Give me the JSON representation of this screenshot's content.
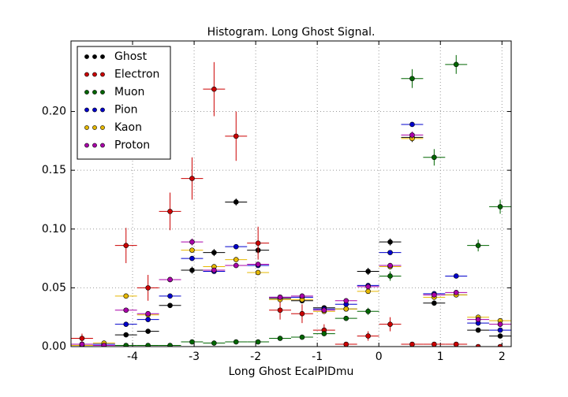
{
  "chart_data": {
    "type": "histogram_errorbar",
    "title": "Histogram. Long Ghost Signal.",
    "xlabel": "Long Ghost EcalPIDmu",
    "bins": [
      -5,
      -4.6425,
      -4.285,
      -3.9275,
      -3.57,
      -3.2125,
      -2.855,
      -2.4975,
      -2.14,
      -1.7825,
      -1.425,
      -1.0675,
      -0.71,
      -0.3525,
      0.005,
      0.3625,
      0.72,
      1.0775,
      1.435,
      1.7925,
      2.15
    ],
    "xlim": [
      -5,
      2.15
    ],
    "ylim": [
      0,
      0.26
    ],
    "xticks": [
      -4,
      -3,
      -2,
      -1,
      0,
      1,
      2
    ],
    "yticks": [
      {
        "value": 0,
        "label": "0.00"
      },
      {
        "value": 0.05,
        "label": "0.05"
      },
      {
        "value": 0.1,
        "label": "0.10"
      },
      {
        "value": 0.15,
        "label": "0.15"
      },
      {
        "value": 0.2,
        "label": "0.20"
      }
    ],
    "grid": true,
    "legend": "upper left",
    "series": [
      {
        "name": "Ghost",
        "color": "#000000",
        "values": [
          0.002,
          0.001,
          0.01,
          0.013,
          0.035,
          0.065,
          0.08,
          0.123,
          0.082,
          0.041,
          0.039,
          0.033,
          0.032,
          0.064,
          0.089,
          0.178,
          0.037,
          0.044,
          0.014,
          0.009
        ],
        "errors": [
          0.001,
          0.001,
          0.002,
          0.002,
          0.002,
          0.003,
          0.003,
          0.003,
          0.003,
          0.002,
          0.002,
          0.002,
          0.002,
          0.003,
          0.003,
          0.004,
          0.002,
          0.002,
          0.001,
          0.001
        ]
      },
      {
        "name": "Electron",
        "color": "#cc0000",
        "values": [
          0.007,
          0.002,
          0.086,
          0.05,
          0.115,
          0.143,
          0.219,
          0.179,
          0.088,
          0.031,
          0.028,
          0.014,
          0.002,
          0.009,
          0.019,
          0.002,
          0.002,
          0.002,
          0.0,
          0.0
        ],
        "errors": [
          0.004,
          0.002,
          0.015,
          0.011,
          0.016,
          0.018,
          0.023,
          0.021,
          0.014,
          0.008,
          0.008,
          0.005,
          0.002,
          0.004,
          0.006,
          0.002,
          0.002,
          0.002,
          0.001,
          0.001
        ]
      },
      {
        "name": "Muon",
        "color": "#006600",
        "values": [
          0.001,
          0.001,
          0.001,
          0.001,
          0.001,
          0.004,
          0.003,
          0.004,
          0.004,
          0.007,
          0.008,
          0.011,
          0.024,
          0.03,
          0.06,
          0.228,
          0.161,
          0.24,
          0.086,
          0.119
        ],
        "errors": [
          0.001,
          0.001,
          0.001,
          0.001,
          0.001,
          0.001,
          0.001,
          0.001,
          0.001,
          0.001,
          0.001,
          0.002,
          0.002,
          0.003,
          0.004,
          0.008,
          0.007,
          0.008,
          0.005,
          0.006
        ]
      },
      {
        "name": "Pion",
        "color": "#0000cc",
        "values": [
          0.002,
          0.002,
          0.019,
          0.023,
          0.043,
          0.075,
          0.064,
          0.085,
          0.069,
          0.042,
          0.042,
          0.032,
          0.036,
          0.052,
          0.08,
          0.189,
          0.045,
          0.06,
          0.02,
          0.014
        ],
        "errors": [
          0.001,
          0.001,
          0.001,
          0.001,
          0.001,
          0.001,
          0.001,
          0.001,
          0.001,
          0.001,
          0.001,
          0.001,
          0.001,
          0.001,
          0.001,
          0.002,
          0.001,
          0.001,
          0.001,
          0.001
        ]
      },
      {
        "name": "Kaon",
        "color": "#e6b800",
        "values": [
          0.001,
          0.003,
          0.043,
          0.027,
          0.057,
          0.082,
          0.068,
          0.074,
          0.063,
          0.04,
          0.04,
          0.03,
          0.032,
          0.047,
          0.068,
          0.177,
          0.042,
          0.044,
          0.025,
          0.022
        ],
        "errors": [
          0.001,
          0.001,
          0.001,
          0.001,
          0.001,
          0.001,
          0.001,
          0.001,
          0.001,
          0.001,
          0.001,
          0.001,
          0.001,
          0.001,
          0.001,
          0.002,
          0.001,
          0.001,
          0.001,
          0.001
        ]
      },
      {
        "name": "Proton",
        "color": "#aa00aa",
        "values": [
          0.002,
          0.001,
          0.031,
          0.028,
          0.057,
          0.089,
          0.065,
          0.069,
          0.07,
          0.042,
          0.043,
          0.031,
          0.039,
          0.051,
          0.069,
          0.18,
          0.044,
          0.046,
          0.023,
          0.019
        ],
        "errors": [
          0.001,
          0.001,
          0.002,
          0.002,
          0.002,
          0.003,
          0.002,
          0.002,
          0.002,
          0.002,
          0.002,
          0.002,
          0.002,
          0.002,
          0.002,
          0.003,
          0.002,
          0.002,
          0.002,
          0.002
        ]
      }
    ]
  }
}
